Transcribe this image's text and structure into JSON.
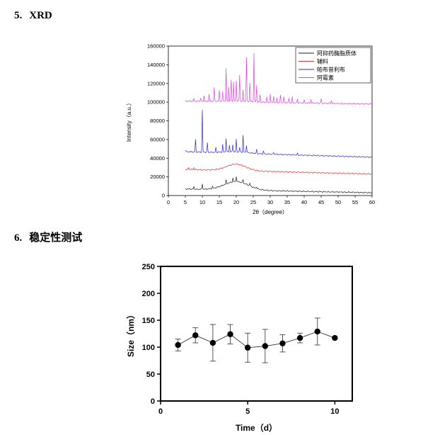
{
  "sections": [
    {
      "number": "5.",
      "title": "XRD"
    },
    {
      "number": "6.",
      "title": "稳定性测试"
    }
  ],
  "chart_data": [
    {
      "type": "line",
      "xlabel": "2θ（degree）",
      "ylabel": "Intensity（a.u.）",
      "xlim": [
        0,
        60
      ],
      "ylim": [
        0,
        160000
      ],
      "x_ticks": [
        0,
        5,
        10,
        15,
        20,
        25,
        30,
        35,
        40,
        45,
        50,
        55,
        60
      ],
      "y_ticks": [
        0,
        20000,
        40000,
        60000,
        80000,
        100000,
        120000,
        140000,
        160000
      ],
      "legend_position": "top-right",
      "series": [
        {
          "name": "阿抑药酶脂质体",
          "color": "#222222",
          "baseline": 7000,
          "hump": {
            "center": 20,
            "height": 9000,
            "width": 5
          },
          "peaks": [
            [
              7.5,
              3000
            ],
            [
              10,
              6000
            ],
            [
              13,
              2000
            ],
            [
              17,
              4000
            ],
            [
              19,
              4000
            ],
            [
              20,
              6000
            ],
            [
              22,
              4000
            ],
            [
              24,
              3000
            ],
            [
              26,
              2000
            ]
          ],
          "end": 3000
        },
        {
          "name": "辅料",
          "color": "#e8302a",
          "baseline": 28000,
          "hump": {
            "center": 20,
            "height": 7000,
            "width": 4
          },
          "peaks": [
            [
              6,
              2000
            ],
            [
              7.5,
              2000
            ]
          ],
          "end": 23000
        },
        {
          "name": "帕布昔利布",
          "color": "#2b2bd6",
          "baseline": 47000,
          "hump": {
            "center": 20,
            "height": 1500,
            "width": 5
          },
          "peaks": [
            [
              5,
              2000
            ],
            [
              8,
              13000
            ],
            [
              10,
              45000
            ],
            [
              11.5,
              10000
            ],
            [
              14,
              5000
            ],
            [
              16,
              8000
            ],
            [
              17,
              15000
            ],
            [
              18,
              7000
            ],
            [
              19,
              8000
            ],
            [
              20,
              13000
            ],
            [
              21,
              5000
            ],
            [
              22,
              18000
            ],
            [
              23,
              8000
            ],
            [
              26,
              4000
            ],
            [
              28,
              3000
            ],
            [
              31,
              2000
            ],
            [
              38,
              1500
            ]
          ],
          "end": 41000
        },
        {
          "name": "阿霉素",
          "color": "#e040e0",
          "baseline": 101000,
          "hump": {
            "center": 20,
            "height": 1000,
            "width": 6
          },
          "peaks": [
            [
              7.5,
              3000
            ],
            [
              9.5,
              4000
            ],
            [
              10.5,
              6000
            ],
            [
              12,
              8000
            ],
            [
              13.5,
              15000
            ],
            [
              15,
              12000
            ],
            [
              16,
              10000
            ],
            [
              17,
              35000
            ],
            [
              17.8,
              15000
            ],
            [
              18.5,
              22000
            ],
            [
              19.2,
              20000
            ],
            [
              20,
              22000
            ],
            [
              21,
              28000
            ],
            [
              22,
              12000
            ],
            [
              23,
              47000
            ],
            [
              24,
              20000
            ],
            [
              25.2,
              52000
            ],
            [
              26,
              18000
            ],
            [
              27,
              8000
            ],
            [
              29,
              6000
            ],
            [
              30,
              9000
            ],
            [
              31,
              7000
            ],
            [
              32,
              5000
            ],
            [
              33,
              8000
            ],
            [
              34,
              6000
            ],
            [
              35.5,
              5000
            ],
            [
              36.5,
              6000
            ],
            [
              38,
              4000
            ],
            [
              40,
              3000
            ],
            [
              42,
              4000
            ],
            [
              45,
              5000
            ],
            [
              48,
              3000
            ]
          ],
          "end": 98000
        }
      ]
    },
    {
      "type": "scatter",
      "xlabel": "Time（d）",
      "ylabel": "Size（nm）",
      "xlim": [
        0,
        11
      ],
      "ylim": [
        0,
        250
      ],
      "x_ticks": [
        0,
        5,
        10
      ],
      "y_ticks": [
        0,
        50,
        100,
        150,
        200,
        250
      ],
      "points": [
        {
          "x": 1,
          "y": 104,
          "err": 11
        },
        {
          "x": 2,
          "y": 122,
          "err": 14
        },
        {
          "x": 3,
          "y": 108,
          "err": 34
        },
        {
          "x": 4,
          "y": 124,
          "err": 18
        },
        {
          "x": 5,
          "y": 99,
          "err": 27
        },
        {
          "x": 6,
          "y": 102,
          "err": 31
        },
        {
          "x": 7,
          "y": 107,
          "err": 16
        },
        {
          "x": 8,
          "y": 117,
          "err": 9
        },
        {
          "x": 9,
          "y": 129,
          "err": 25
        },
        {
          "x": 10,
          "y": 117,
          "err": 0
        }
      ]
    }
  ]
}
